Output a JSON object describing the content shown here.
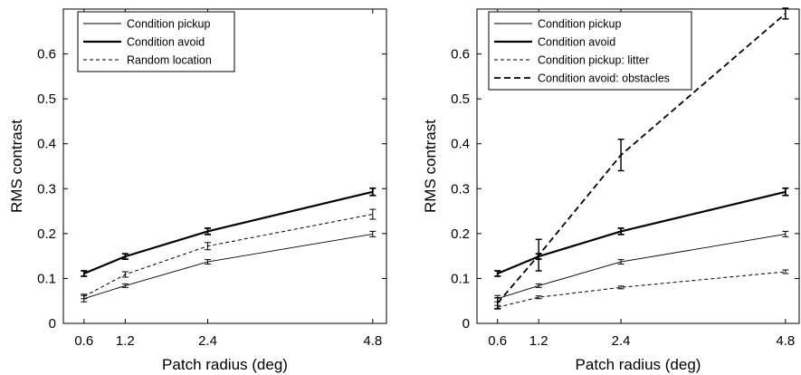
{
  "chart_data": [
    {
      "type": "line",
      "xlabel": "Patch radius (deg)",
      "ylabel": "RMS contrast",
      "xlim": [
        0.3,
        5.0
      ],
      "ylim": [
        0,
        0.7
      ],
      "xticks": [
        0.6,
        1.2,
        2.4,
        4.8
      ],
      "xtick_labels": [
        "0.6",
        "1.2",
        "2.4",
        "4.8"
      ],
      "yticks": [
        0,
        0.1,
        0.2,
        0.3,
        0.4,
        0.5,
        0.6
      ],
      "ytick_labels": [
        "0",
        "0.1",
        "0.2",
        "0.3",
        "0.4",
        "0.5",
        "0.6"
      ],
      "legend_position": "top-left",
      "x": [
        0.6,
        1.2,
        2.4,
        4.8
      ],
      "series": [
        {
          "name": "Condition pickup",
          "style": "thin-solid",
          "values": [
            0.055,
            0.084,
            0.137,
            0.199
          ],
          "errors": [
            0.007,
            0.004,
            0.005,
            0.006
          ]
        },
        {
          "name": "Condition avoid",
          "style": "thick-solid",
          "values": [
            0.111,
            0.149,
            0.205,
            0.293
          ],
          "errors": [
            0.006,
            0.006,
            0.007,
            0.008
          ]
        },
        {
          "name": "Random location",
          "style": "thin-dashed",
          "values": [
            0.06,
            0.109,
            0.172,
            0.243
          ],
          "errors": [
            0.005,
            0.006,
            0.008,
            0.011
          ]
        }
      ]
    },
    {
      "type": "line",
      "xlabel": "Patch radius (deg)",
      "ylabel": "RMS contrast",
      "xlim": [
        0.3,
        5.0
      ],
      "ylim": [
        0,
        0.7
      ],
      "xticks": [
        0.6,
        1.2,
        2.4,
        4.8
      ],
      "xtick_labels": [
        "0.6",
        "1.2",
        "2.4",
        "4.8"
      ],
      "yticks": [
        0,
        0.1,
        0.2,
        0.3,
        0.4,
        0.5,
        0.6
      ],
      "ytick_labels": [
        "0",
        "0.1",
        "0.2",
        "0.3",
        "0.4",
        "0.5",
        "0.6"
      ],
      "legend_position": "top-left",
      "x": [
        0.6,
        1.2,
        2.4,
        4.8
      ],
      "series": [
        {
          "name": "Condition pickup",
          "style": "thin-solid",
          "values": [
            0.055,
            0.084,
            0.137,
            0.199
          ],
          "errors": [
            0.007,
            0.004,
            0.005,
            0.006
          ]
        },
        {
          "name": "Condition avoid",
          "style": "thick-solid",
          "values": [
            0.111,
            0.149,
            0.205,
            0.293
          ],
          "errors": [
            0.006,
            0.006,
            0.007,
            0.008
          ]
        },
        {
          "name": "Condition pickup: litter",
          "style": "thin-dashed",
          "values": [
            0.036,
            0.058,
            0.08,
            0.115
          ],
          "errors": [
            0.004,
            0.003,
            0.003,
            0.004
          ]
        },
        {
          "name": "Condition avoid: obstacles",
          "style": "thick-dashed",
          "values": [
            0.045,
            0.152,
            0.375,
            0.69
          ],
          "errors": [
            0.012,
            0.035,
            0.035,
            0.012
          ]
        }
      ]
    }
  ]
}
